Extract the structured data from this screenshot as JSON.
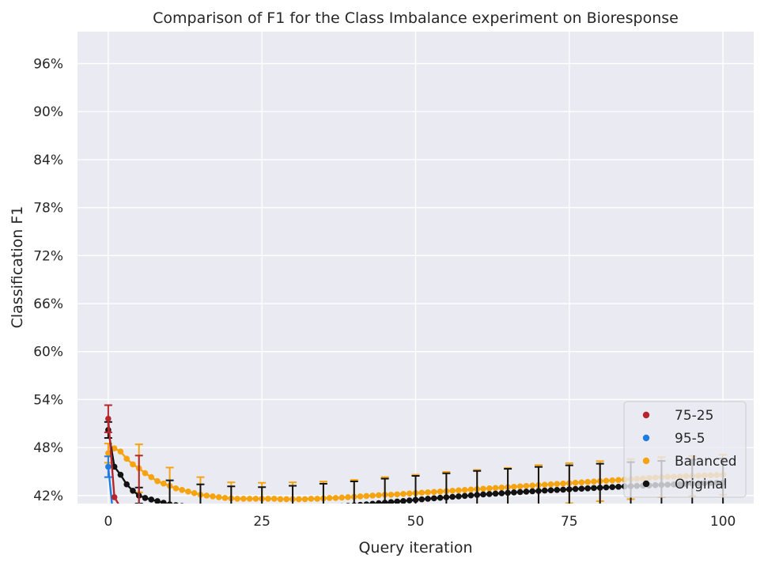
{
  "chart_data": {
    "type": "line",
    "title": "Comparison of F1 for the Class Imbalance experiment on Bioresponse",
    "xlabel": "Query iteration",
    "ylabel": "Classification F1",
    "xlim": [
      -5,
      105
    ],
    "ylim": [
      0.41,
      1.0
    ],
    "xticks": [
      0,
      25,
      50,
      75,
      100
    ],
    "xtick_labels": [
      "0",
      "25",
      "50",
      "75",
      "100"
    ],
    "yticks": [
      0.42,
      0.48,
      0.54,
      0.6,
      0.66,
      0.72,
      0.78,
      0.84,
      0.9,
      0.96
    ],
    "ytick_labels": [
      "42%",
      "48%",
      "54%",
      "60%",
      "66%",
      "72%",
      "78%",
      "84%",
      "90%",
      "96%"
    ],
    "grid": true,
    "legend_position": "bottom-right",
    "series": [
      {
        "name": "75-25",
        "color": "#b5262b",
        "x": [
          0,
          1,
          2,
          3,
          4,
          5
        ],
        "y": [
          0.516,
          0.418,
          0.405,
          0.395,
          0.39,
          0.385
        ],
        "errorbars": [
          {
            "x": 0,
            "y": 0.516,
            "err": 0.017
          },
          {
            "x": 5,
            "y": 0.385,
            "err": 0.085
          }
        ]
      },
      {
        "name": "95-5",
        "color": "#1f7ce0",
        "x": [
          0,
          1
        ],
        "y": [
          0.456,
          0.38
        ],
        "errorbars": [
          {
            "x": 0,
            "y": 0.456,
            "err": 0.013
          }
        ]
      },
      {
        "name": "Balanced",
        "color": "#f5a40f",
        "x": [
          0,
          1,
          2,
          3,
          4,
          5,
          6,
          7,
          8,
          9,
          10,
          11,
          12,
          13,
          14,
          15,
          16,
          17,
          18,
          19,
          20,
          21,
          22,
          23,
          24,
          25,
          26,
          27,
          28,
          29,
          30,
          31,
          32,
          33,
          34,
          35,
          36,
          37,
          38,
          39,
          40,
          41,
          42,
          43,
          44,
          45,
          46,
          47,
          48,
          49,
          50,
          51,
          52,
          53,
          54,
          55,
          56,
          57,
          58,
          59,
          60,
          61,
          62,
          63,
          64,
          65,
          66,
          67,
          68,
          69,
          70,
          71,
          72,
          73,
          74,
          75,
          76,
          77,
          78,
          79,
          80,
          81,
          82,
          83,
          84,
          85,
          86,
          87,
          88,
          89,
          90,
          91,
          92,
          93,
          94,
          95,
          96,
          97,
          98,
          99,
          100
        ],
        "y": [
          0.473,
          0.479,
          0.475,
          0.466,
          0.459,
          0.454,
          0.448,
          0.443,
          0.438,
          0.435,
          0.432,
          0.429,
          0.427,
          0.425,
          0.423,
          0.421,
          0.42,
          0.419,
          0.418,
          0.417,
          0.4165,
          0.416,
          0.416,
          0.416,
          0.416,
          0.416,
          0.416,
          0.416,
          0.4155,
          0.4155,
          0.4155,
          0.4155,
          0.4155,
          0.416,
          0.416,
          0.4165,
          0.417,
          0.417,
          0.4175,
          0.418,
          0.4185,
          0.419,
          0.4195,
          0.42,
          0.4205,
          0.421,
          0.421,
          0.4215,
          0.422,
          0.4225,
          0.423,
          0.4235,
          0.424,
          0.4245,
          0.425,
          0.4255,
          0.426,
          0.4265,
          0.427,
          0.4275,
          0.428,
          0.4285,
          0.429,
          0.4295,
          0.43,
          0.4305,
          0.431,
          0.4315,
          0.432,
          0.4325,
          0.433,
          0.4335,
          0.434,
          0.4345,
          0.435,
          0.4355,
          0.436,
          0.4365,
          0.437,
          0.4375,
          0.438,
          0.4385,
          0.439,
          0.4395,
          0.44,
          0.4405,
          0.441,
          0.4415,
          0.442,
          0.4425,
          0.443,
          0.4433,
          0.4436,
          0.4439,
          0.4442,
          0.4445,
          0.4448,
          0.4451,
          0.4454,
          0.4457,
          0.446
        ],
        "errorbars": [
          {
            "x": 0,
            "y": 0.473,
            "err": 0.012
          },
          {
            "x": 5,
            "y": 0.454,
            "err": 0.03
          },
          {
            "x": 10,
            "y": 0.432,
            "err": 0.023
          },
          {
            "x": 15,
            "y": 0.421,
            "err": 0.022
          },
          {
            "x": 20,
            "y": 0.4165,
            "err": 0.02
          },
          {
            "x": 25,
            "y": 0.416,
            "err": 0.02
          },
          {
            "x": 30,
            "y": 0.4155,
            "err": 0.021
          },
          {
            "x": 35,
            "y": 0.4165,
            "err": 0.021
          },
          {
            "x": 40,
            "y": 0.4185,
            "err": 0.021
          },
          {
            "x": 45,
            "y": 0.421,
            "err": 0.022
          },
          {
            "x": 50,
            "y": 0.423,
            "err": 0.023
          },
          {
            "x": 55,
            "y": 0.4255,
            "err": 0.024
          },
          {
            "x": 60,
            "y": 0.428,
            "err": 0.024
          },
          {
            "x": 65,
            "y": 0.4305,
            "err": 0.024
          },
          {
            "x": 70,
            "y": 0.433,
            "err": 0.025
          },
          {
            "x": 75,
            "y": 0.4355,
            "err": 0.025
          },
          {
            "x": 80,
            "y": 0.438,
            "err": 0.025
          },
          {
            "x": 85,
            "y": 0.4405,
            "err": 0.025
          },
          {
            "x": 90,
            "y": 0.443,
            "err": 0.025
          },
          {
            "x": 95,
            "y": 0.4445,
            "err": 0.025
          },
          {
            "x": 100,
            "y": 0.446,
            "err": 0.025
          }
        ]
      },
      {
        "name": "Original",
        "color": "#121212",
        "x": [
          0,
          1,
          2,
          3,
          4,
          5,
          6,
          7,
          8,
          9,
          10,
          11,
          12,
          13,
          14,
          15,
          16,
          17,
          18,
          19,
          20,
          21,
          22,
          23,
          24,
          25,
          26,
          27,
          28,
          29,
          30,
          31,
          32,
          33,
          34,
          35,
          36,
          37,
          38,
          39,
          40,
          41,
          42,
          43,
          44,
          45,
          46,
          47,
          48,
          49,
          50,
          51,
          52,
          53,
          54,
          55,
          56,
          57,
          58,
          59,
          60,
          61,
          62,
          63,
          64,
          65,
          66,
          67,
          68,
          69,
          70,
          71,
          72,
          73,
          74,
          75,
          76,
          77,
          78,
          79,
          80,
          81,
          82,
          83,
          84,
          85,
          86,
          87,
          88,
          89,
          90,
          91,
          92,
          93,
          94,
          95,
          96,
          97,
          98,
          99,
          100
        ],
        "y": [
          0.502,
          0.456,
          0.446,
          0.434,
          0.426,
          0.42,
          0.417,
          0.415,
          0.413,
          0.411,
          0.409,
          0.408,
          0.407,
          0.406,
          0.405,
          0.404,
          0.4035,
          0.403,
          0.4025,
          0.402,
          0.4015,
          0.401,
          0.4008,
          0.4006,
          0.4005,
          0.4005,
          0.4007,
          0.401,
          0.4014,
          0.4018,
          0.4022,
          0.4028,
          0.4033,
          0.4038,
          0.4043,
          0.4048,
          0.4053,
          0.4059,
          0.4065,
          0.4071,
          0.4077,
          0.4083,
          0.409,
          0.4097,
          0.4104,
          0.4111,
          0.4118,
          0.4125,
          0.4132,
          0.4139,
          0.4146,
          0.4153,
          0.416,
          0.4166,
          0.4172,
          0.4178,
          0.4184,
          0.419,
          0.4196,
          0.4202,
          0.4208,
          0.4214,
          0.4219,
          0.4224,
          0.4229,
          0.4234,
          0.4239,
          0.4244,
          0.4249,
          0.4254,
          0.4258,
          0.4262,
          0.4266,
          0.427,
          0.4274,
          0.4278,
          0.4282,
          0.4286,
          0.429,
          0.4294,
          0.4298,
          0.4302,
          0.4306,
          0.431,
          0.4314,
          0.4318,
          0.4321,
          0.4324,
          0.4327,
          0.433,
          0.4333,
          0.4336,
          0.4339,
          0.4342,
          0.4345,
          0.4348,
          0.4351,
          0.4354,
          0.4357,
          0.436,
          0.4363
        ],
        "errorbars": [
          {
            "x": 0,
            "y": 0.502,
            "err": 0.01
          },
          {
            "x": 5,
            "y": 0.42,
            "err": 0.01
          },
          {
            "x": 10,
            "y": 0.409,
            "err": 0.03
          },
          {
            "x": 15,
            "y": 0.404,
            "err": 0.03
          },
          {
            "x": 20,
            "y": 0.4015,
            "err": 0.03
          },
          {
            "x": 25,
            "y": 0.4005,
            "err": 0.03
          },
          {
            "x": 30,
            "y": 0.4022,
            "err": 0.03
          },
          {
            "x": 35,
            "y": 0.4048,
            "err": 0.03
          },
          {
            "x": 40,
            "y": 0.4077,
            "err": 0.03
          },
          {
            "x": 45,
            "y": 0.4111,
            "err": 0.03
          },
          {
            "x": 50,
            "y": 0.4146,
            "err": 0.03
          },
          {
            "x": 55,
            "y": 0.4178,
            "err": 0.03
          },
          {
            "x": 60,
            "y": 0.4208,
            "err": 0.03
          },
          {
            "x": 65,
            "y": 0.4234,
            "err": 0.03
          },
          {
            "x": 70,
            "y": 0.4258,
            "err": 0.03
          },
          {
            "x": 75,
            "y": 0.4278,
            "err": 0.03
          },
          {
            "x": 80,
            "y": 0.4298,
            "err": 0.03
          },
          {
            "x": 85,
            "y": 0.4318,
            "err": 0.03
          },
          {
            "x": 90,
            "y": 0.4333,
            "err": 0.03
          },
          {
            "x": 95,
            "y": 0.4348,
            "err": 0.03
          },
          {
            "x": 100,
            "y": 0.4363,
            "err": 0.03
          }
        ]
      }
    ]
  }
}
